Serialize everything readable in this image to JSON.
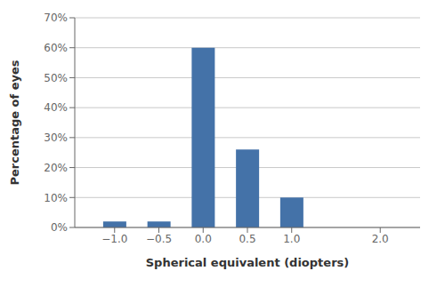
{
  "chart_data": {
    "type": "bar",
    "x": [
      -1.0,
      -0.5,
      0.0,
      0.5,
      1.0,
      2.0
    ],
    "values": [
      2,
      2,
      60,
      26,
      10,
      0
    ],
    "color": "#4472A8",
    "xlabel": "Spherical equivalent (diopters)",
    "ylabel": "Percentage of eyes",
    "xlim": [
      -1.45,
      2.45
    ],
    "xticks": [
      {
        "value": -1.0,
        "label": "−1.0"
      },
      {
        "value": -0.5,
        "label": "−0.5"
      },
      {
        "value": 0.0,
        "label": "0.0"
      },
      {
        "value": 0.5,
        "label": "0.5"
      },
      {
        "value": 1.0,
        "label": "1.0"
      },
      {
        "value": 2.0,
        "label": "2.0"
      }
    ],
    "ylim": [
      0,
      70
    ],
    "yticks": [
      {
        "value": 0,
        "label": "0%"
      },
      {
        "value": 10,
        "label": "10%"
      },
      {
        "value": 20,
        "label": "20%"
      },
      {
        "value": 30,
        "label": "30%"
      },
      {
        "value": 40,
        "label": "40%"
      },
      {
        "value": 50,
        "label": "50%"
      },
      {
        "value": 60,
        "label": "60%"
      },
      {
        "value": 70,
        "label": "70%"
      }
    ],
    "grid": true
  }
}
